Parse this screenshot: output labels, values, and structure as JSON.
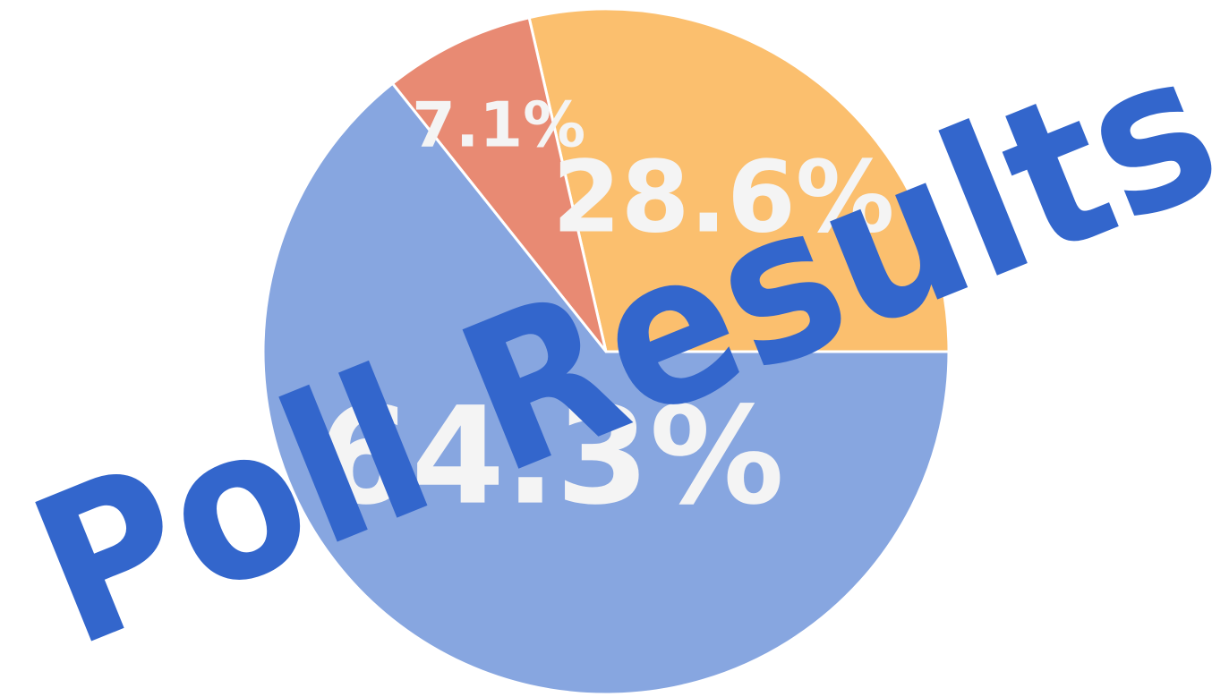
{
  "chart_data": {
    "type": "pie",
    "title": "Poll Results",
    "categories": [
      null,
      null,
      null
    ],
    "values": [
      28.6,
      7.1,
      64.3
    ],
    "value_labels": [
      "28.6%",
      "7.1%",
      "64.3%"
    ],
    "colors": [
      "#fbbf6e",
      "#e88a73",
      "#87a6e0"
    ]
  }
}
